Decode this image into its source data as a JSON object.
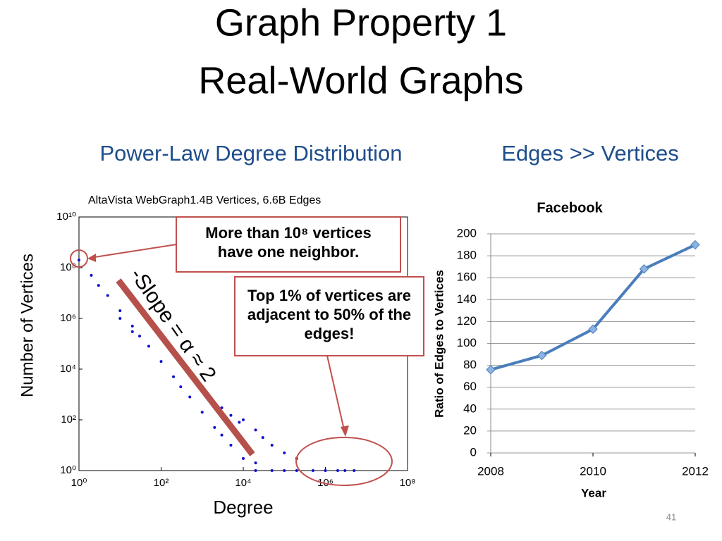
{
  "slide": {
    "title_line1": "Graph Property 1",
    "title_line2": "Real-World Graphs",
    "left_heading": "Power-Law Degree Distribution",
    "right_heading": "Edges >> Vertices",
    "page_number": "41",
    "callout_neighbor": "More than 10⁸ vertices have one neighbor.",
    "callout_top": "Top 1% of vertices are adjacent to 50% of the edges!",
    "slope_label": "-Slope  = α ≈ 2"
  },
  "chart_data": [
    {
      "type": "scatter",
      "subtitle": "AltaVista WebGraph1.4B Vertices, 6.6B Edges",
      "x_label": "Degree",
      "y_label": "Number of  Vertices",
      "color": "#1010d0",
      "x_log": true,
      "y_log": true,
      "x": [
        1,
        2,
        3,
        5,
        10,
        10,
        20,
        20,
        30,
        50,
        100,
        200,
        300,
        500,
        1000,
        2000,
        2000,
        3000,
        3000,
        5000,
        5000,
        8000,
        10000,
        10000,
        20000,
        20000,
        30000,
        50000,
        100000,
        200000,
        20000,
        50000,
        100000,
        200000,
        500000,
        1000000,
        2000000,
        3000000,
        5000000
      ],
      "values": [
        200000000.0,
        50000000.0,
        20000000.0,
        8000000.0,
        2000000.0,
        1000000.0,
        500000.0,
        300000.0,
        200000.0,
        80000.0,
        20000.0,
        5000.0,
        2000.0,
        800,
        200,
        50,
        400,
        25,
        300,
        10,
        150,
        80,
        3,
        100,
        2,
        40,
        20,
        10,
        5,
        3,
        1,
        1,
        1,
        1,
        1,
        1,
        1,
        1,
        1
      ],
      "xlim": [
        1,
        100000000
      ],
      "ylim": [
        1,
        10000000000
      ],
      "xticks": [
        {
          "value": 1,
          "label": "10⁰"
        },
        {
          "value": 100,
          "label": "10²"
        },
        {
          "value": 10000,
          "label": "10⁴"
        },
        {
          "value": 1000000,
          "label": "10⁶"
        },
        {
          "value": 100000000,
          "label": "10⁸"
        }
      ],
      "yticks": [
        {
          "value": 1,
          "label": "10⁰"
        },
        {
          "value": 100,
          "label": "10²"
        },
        {
          "value": 10000,
          "label": "10⁴"
        },
        {
          "value": 1000000,
          "label": "10⁶"
        },
        {
          "value": 100000000,
          "label": "10⁸"
        },
        {
          "value": 10000000000,
          "label": "10¹⁰"
        }
      ],
      "grid": false
    },
    {
      "type": "line",
      "title": "Facebook",
      "x_label": "Year",
      "y_label": "Ratio of Edges to Vertices",
      "color": "#4a7ebb",
      "x_log": false,
      "y_log": false,
      "x": [
        2008,
        2009,
        2010,
        2011,
        2012
      ],
      "values": [
        76,
        89,
        113,
        168,
        190
      ],
      "xlim": [
        2008,
        2012
      ],
      "ylim": [
        0,
        200
      ],
      "xticks": [
        2008,
        2010,
        2012
      ],
      "yticks": [
        0,
        20,
        40,
        60,
        80,
        100,
        120,
        140,
        160,
        180,
        200
      ],
      "grid": true
    }
  ]
}
